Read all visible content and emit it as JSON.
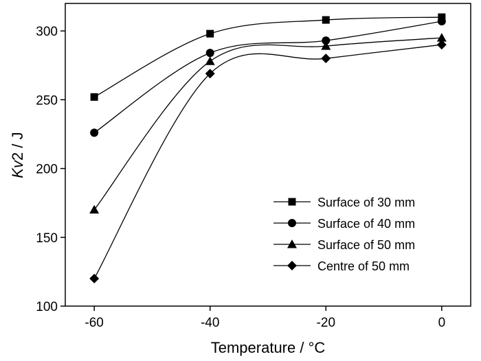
{
  "chart_data": {
    "type": "line",
    "title": "",
    "xlabel": "Temperature / °C",
    "ylabel_italic": "Kv",
    "ylabel_rest": "2 / J",
    "x": [
      -60,
      -40,
      -20,
      0
    ],
    "xlim": [
      -65,
      5
    ],
    "ylim": [
      100,
      320
    ],
    "xticks": [
      -60,
      -40,
      -20,
      0
    ],
    "yticks": [
      100,
      150,
      200,
      250,
      300
    ],
    "smooth": true,
    "legend_position": "lower-right",
    "series": [
      {
        "name": "Surface of 30 mm",
        "marker": "square",
        "values": [
          252,
          298,
          308,
          310
        ]
      },
      {
        "name": "Surface of 40 mm",
        "marker": "circle",
        "values": [
          226,
          284,
          293,
          307
        ]
      },
      {
        "name": "Surface of 50 mm",
        "marker": "triangle",
        "values": [
          170,
          278,
          289,
          295
        ]
      },
      {
        "name": "Centre of 50 mm",
        "marker": "diamond",
        "values": [
          120,
          269,
          280,
          290
        ]
      }
    ]
  }
}
